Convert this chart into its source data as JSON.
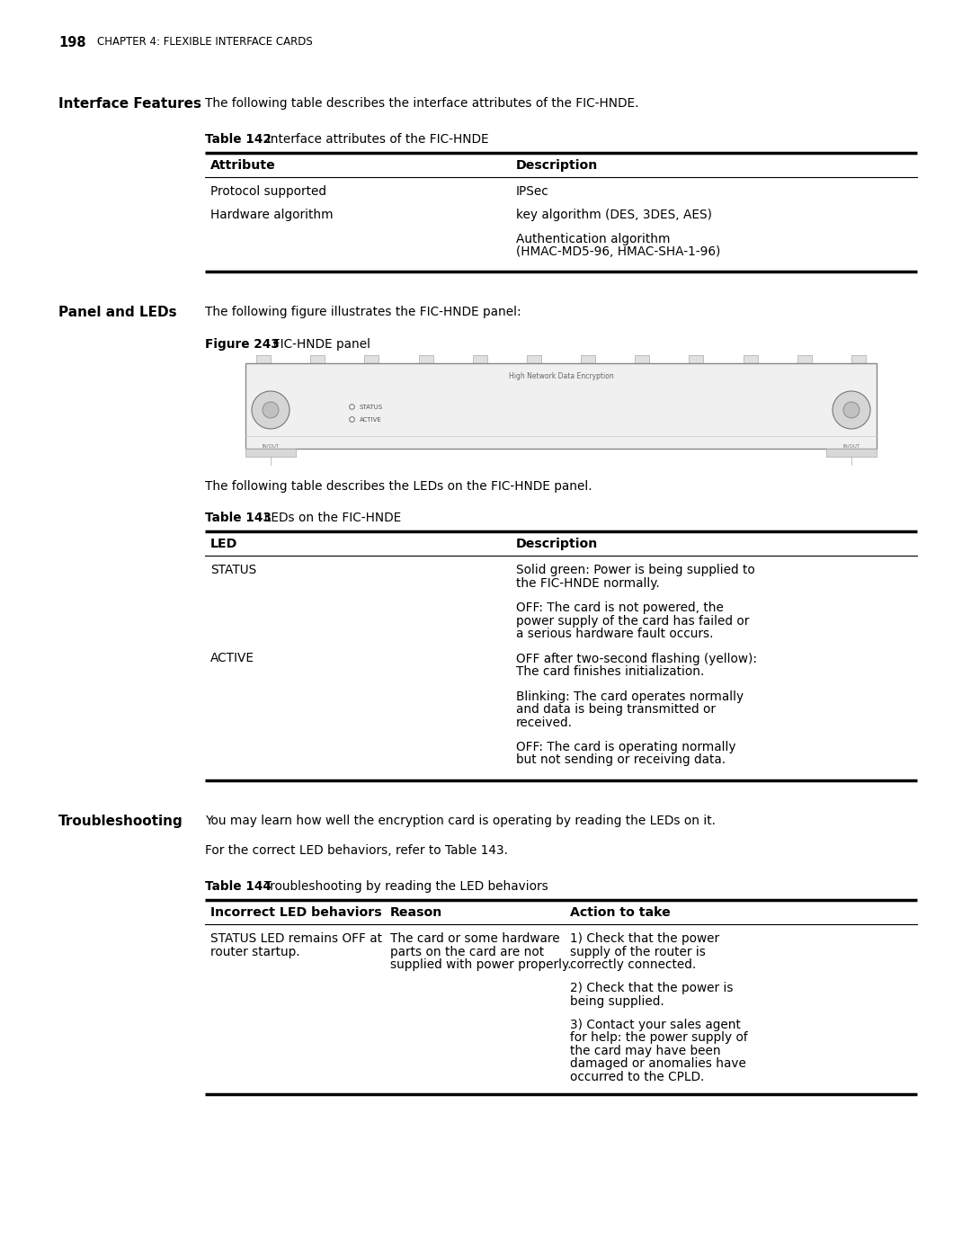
{
  "page_header_num": "198",
  "page_header_text": "CHAPTER 4: FLEXIBLE INTERFACE CARDS",
  "bg_color": "#ffffff",
  "section1_label": "Interface Features",
  "section1_text": "The following table describes the interface attributes of the FIC-HNDE.",
  "table1_title_bold": "Table 142",
  "table1_title_normal": "  Interface attributes of the FIC-HNDE",
  "table1_headers": [
    "Attribute",
    "Description"
  ],
  "table1_rows": [
    [
      "Protocol supported",
      "IPSec"
    ],
    [
      "Hardware algorithm",
      "key algorithm (DES, 3DES, AES)"
    ],
    [
      "",
      "Authentication algorithm\n(HMAC-MD5-96, HMAC-SHA-1-96)"
    ]
  ],
  "section2_label": "Panel and LEDs",
  "section2_text": "The following figure illustrates the FIC-HNDE panel:",
  "figure_label_bold": "Figure 243",
  "figure_label_normal": "  FIC-HNDE panel",
  "panel_title": "High Network Data Encryption",
  "led1_label": "STATUS",
  "led2_label": "ACTIVE",
  "port_label": "IN/OUT",
  "section2_text2": "The following table describes the LEDs on the FIC-HNDE panel.",
  "table2_title_bold": "Table 143",
  "table2_title_normal": "  LEDs on the FIC-HNDE",
  "table2_headers": [
    "LED",
    "Description"
  ],
  "table2_rows": [
    [
      "STATUS",
      "Solid green: Power is being supplied to\nthe FIC-HNDE normally."
    ],
    [
      "",
      "OFF: The card is not powered, the\npower supply of the card has failed or\na serious hardware fault occurs."
    ],
    [
      "ACTIVE",
      "OFF after two-second flashing (yellow):\nThe card finishes initialization."
    ],
    [
      "",
      "Blinking: The card operates normally\nand data is being transmitted or\nreceived."
    ],
    [
      "",
      "OFF: The card is operating normally\nbut not sending or receiving data."
    ]
  ],
  "section3_label": "Troubleshooting",
  "section3_text": "You may learn how well the encryption card is operating by reading the LEDs on it.",
  "section3_text2": "For the correct LED behaviors, refer to Table 143.",
  "table3_title_bold": "Table 144",
  "table3_title_normal": "  Troubleshooting by reading the LED behaviors",
  "table3_headers": [
    "Incorrect LED behaviors",
    "Reason",
    "Action to take"
  ],
  "table3_col0": "STATUS LED remains OFF at\nrouter startup.",
  "table3_col1": "The card or some hardware\nparts on the card are not\nsupplied with power properly.",
  "table3_col2_groups": [
    [
      "1) Check that the power",
      "supply of the router is",
      "correctly connected."
    ],
    [
      "2) Check that the power is",
      "being supplied."
    ],
    [
      "3) Contact your sales agent",
      "for help: the power supply of",
      "the card may have been",
      "damaged or anomalies have",
      "occurred to the CPLD."
    ]
  ]
}
